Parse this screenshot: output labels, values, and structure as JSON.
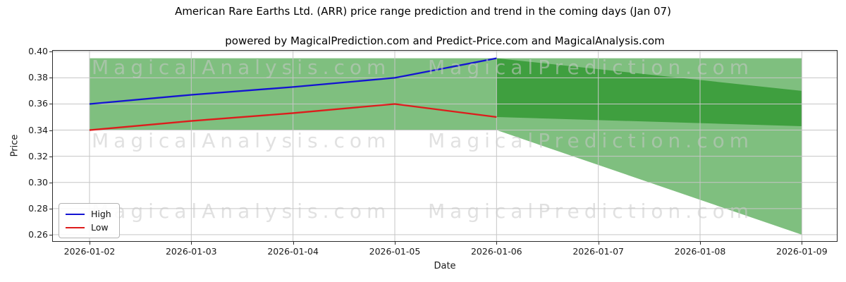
{
  "figure": {
    "title": "American Rare Earths Ltd. (ARR) price range prediction and trend in the coming days (Jan 07)",
    "subtitle": "powered by MagicalPrediction.com and Predict-Price.com and MagicalAnalysis.com"
  },
  "axes": {
    "xlabel": "Date",
    "ylabel": "Price"
  },
  "watermarks": {
    "left": "MagicalAnalysis.com",
    "right": "MagicalPrediction.com"
  },
  "legend": {
    "position": "lower left",
    "entries": [
      {
        "label": "High",
        "color": "#1313d2"
      },
      {
        "label": "Low",
        "color": "#dd1c1c"
      }
    ]
  },
  "chart_data": {
    "type": "line",
    "title": "American Rare Earths Ltd. (ARR) price range prediction and trend in the coming days (Jan 07)",
    "subtitle": "powered by MagicalPrediction.com and Predict-Price.com and MagicalAnalysis.com",
    "xlabel": "Date",
    "ylabel": "Price",
    "x": [
      "2026-01-02",
      "2026-01-03",
      "2026-01-04",
      "2026-01-05",
      "2026-01-06",
      "2026-01-07",
      "2026-01-08",
      "2026-01-09"
    ],
    "yticks": [
      0.26,
      0.28,
      0.3,
      0.32,
      0.34,
      0.36,
      0.38,
      0.4
    ],
    "ytick_format": 2,
    "ylim": [
      0.2551,
      0.4007
    ],
    "xlim_days": [
      -0.36,
      7.344
    ],
    "grid": true,
    "grid_color": "#c6c6c6",
    "legend_position": "lower left",
    "series": [
      {
        "name": "High",
        "color": "#1313d2",
        "width": 2.3,
        "dates": [
          "2026-01-02",
          "2026-01-03",
          "2026-01-04",
          "2026-01-05",
          "2026-01-06"
        ],
        "values": [
          0.36,
          0.367,
          0.373,
          0.38,
          0.395
        ]
      },
      {
        "name": "Low",
        "color": "#dd1c1c",
        "width": 2.3,
        "dates": [
          "2026-01-02",
          "2026-01-03",
          "2026-01-04",
          "2026-01-05",
          "2026-01-06"
        ],
        "values": [
          0.34,
          0.347,
          0.353,
          0.36,
          0.35
        ]
      }
    ],
    "bands": [
      {
        "name": "history-range",
        "color": "#008000",
        "opacity": 0.5,
        "dates": [
          "2026-01-02",
          "2026-01-06"
        ],
        "top": [
          0.395,
          0.395
        ],
        "bottom": [
          0.34,
          0.34
        ]
      },
      {
        "name": "forecast-outer-range",
        "color": "#008000",
        "opacity": 0.5,
        "dates": [
          "2026-01-06",
          "2026-01-09"
        ],
        "top": [
          0.395,
          0.395
        ],
        "bottom": [
          0.34,
          0.26
        ]
      },
      {
        "name": "forecast-inner-range",
        "color": "#008000",
        "opacity": 0.5,
        "dates": [
          "2026-01-06",
          "2026-01-09"
        ],
        "top": [
          0.395,
          0.37
        ],
        "bottom": [
          0.35,
          0.343
        ]
      }
    ]
  }
}
